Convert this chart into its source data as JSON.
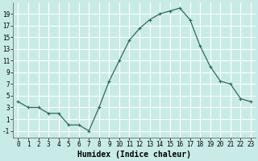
{
  "x": [
    0,
    1,
    2,
    3,
    4,
    5,
    6,
    7,
    8,
    9,
    10,
    11,
    12,
    13,
    14,
    15,
    16,
    17,
    18,
    19,
    20,
    21,
    22,
    23
  ],
  "y": [
    4,
    3,
    3,
    2,
    2,
    0,
    0,
    -1,
    3,
    7.5,
    11,
    14.5,
    16.5,
    18,
    19,
    19.5,
    20,
    18,
    13.5,
    10,
    7.5,
    7,
    4.5,
    4
  ],
  "line_color": "#2e6b5e",
  "marker": "+",
  "marker_size": 3,
  "bg_color": "#c8ebe8",
  "grid_color": "#ffffff",
  "xlabel": "Humidex (Indice chaleur)",
  "xlabel_fontsize": 7,
  "ylabel_ticks": [
    -1,
    1,
    3,
    5,
    7,
    9,
    11,
    13,
    15,
    17,
    19
  ],
  "xlim": [
    -0.5,
    23.5
  ],
  "ylim": [
    -2.2,
    21
  ],
  "xtick_labels": [
    "0",
    "1",
    "2",
    "3",
    "4",
    "5",
    "6",
    "7",
    "8",
    "9",
    "10",
    "11",
    "12",
    "13",
    "14",
    "15",
    "16",
    "17",
    "18",
    "19",
    "20",
    "21",
    "22",
    "23"
  ],
  "tick_fontsize": 5.5
}
